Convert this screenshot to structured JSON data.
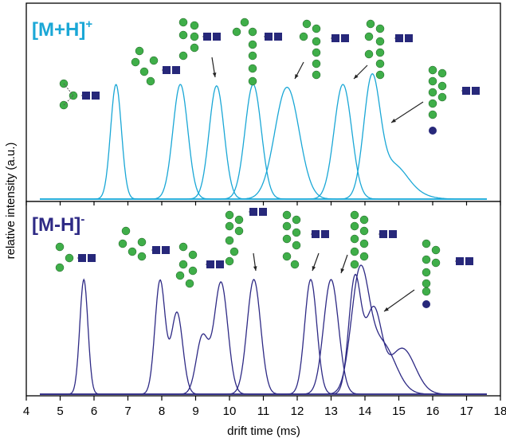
{
  "chart_data": [
    {
      "type": "line",
      "panel": "top",
      "label_main": "[M+H]",
      "label_sup": "+",
      "color": "#1aa7d6",
      "series": [
        {
          "peaks": [
            [
              6.65,
              0.8,
              0.16
            ]
          ]
        },
        {
          "peaks": [
            [
              8.55,
              0.8,
              0.22
            ]
          ]
        },
        {
          "peaks": [
            [
              9.62,
              0.79,
              0.22
            ]
          ]
        },
        {
          "peaks": [
            [
              10.7,
              0.8,
              0.24
            ]
          ]
        },
        {
          "peaks": [
            [
              11.7,
              0.78,
              0.36
            ]
          ]
        },
        {
          "peaks": [
            [
              13.35,
              0.8,
              0.26
            ]
          ]
        },
        {
          "peaks": [
            [
              14.2,
              0.8,
              0.24
            ],
            [
              14.8,
              0.2,
              0.4
            ],
            [
              15.2,
              0.05,
              0.5
            ]
          ]
        }
      ]
    },
    {
      "type": "line",
      "panel": "bottom",
      "label_main": "[M-H]",
      "label_sup": "-",
      "color": "#2e2a85",
      "series": [
        {
          "peaks": [
            [
              5.7,
              0.8,
              0.12
            ]
          ]
        },
        {
          "peaks": [
            [
              7.95,
              0.79,
              0.15
            ],
            [
              8.45,
              0.57,
              0.17
            ]
          ]
        },
        {
          "peaks": [
            [
              9.75,
              0.78,
              0.2
            ],
            [
              9.2,
              0.4,
              0.18
            ]
          ]
        },
        {
          "peaks": [
            [
              10.72,
              0.8,
              0.2
            ]
          ]
        },
        {
          "peaks": [
            [
              12.4,
              0.8,
              0.18
            ]
          ]
        },
        {
          "peaks": [
            [
              13.0,
              0.8,
              0.22
            ]
          ]
        },
        {
          "peaks": [
            [
              13.7,
              0.79,
              0.18
            ],
            [
              14.25,
              0.58,
              0.24
            ],
            [
              15.1,
              0.32,
              0.38
            ]
          ]
        },
        {
          "peaks": [
            [
              13.85,
              0.8,
              0.26
            ],
            [
              14.5,
              0.35,
              0.4
            ]
          ]
        }
      ]
    }
  ],
  "xaxis": {
    "label": "drift time (ms)",
    "xlim": [
      4,
      18
    ],
    "ticks": [
      "4",
      "5",
      "6",
      "7",
      "8",
      "9",
      "10",
      "11",
      "12",
      "13",
      "14",
      "15",
      "16",
      "17",
      "18"
    ]
  },
  "yaxis": {
    "label": "relative intensity (a.u.)"
  },
  "colors": {
    "glc": "#3fae49",
    "glcnac": "#27287a",
    "arrow": "#222222"
  }
}
